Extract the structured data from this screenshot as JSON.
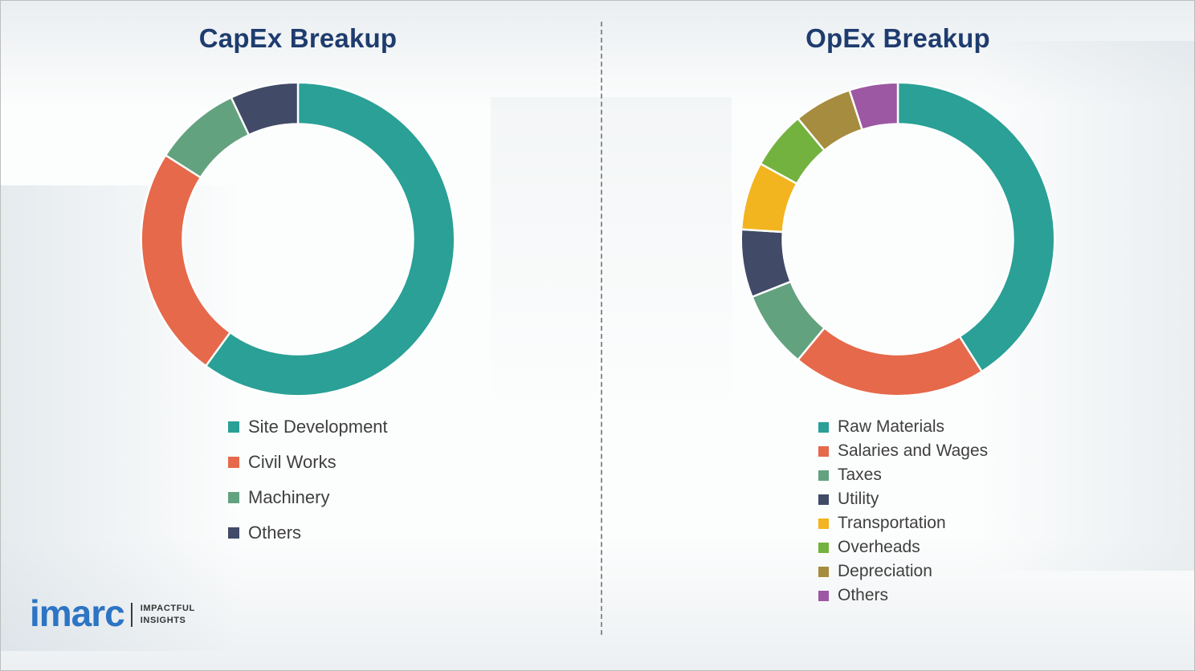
{
  "theme": {
    "title_color": "#1e3c6e",
    "legend_text_color": "#3f3f3f",
    "logo_blue": "#2d74c4",
    "divider_color": "#8d8d8d"
  },
  "chart_data": [
    {
      "type": "pie",
      "variant": "donut",
      "title": "CapEx Breakup",
      "labels": [
        "Site Development",
        "Civil Works",
        "Machinery",
        "Others"
      ],
      "values": [
        60,
        24,
        9,
        7
      ],
      "colors": [
        "#2aa096",
        "#e5694a",
        "#63a27f",
        "#414a66"
      ],
      "start_angle_deg": 0,
      "direction": "clockwise",
      "legend_position": "below-left"
    },
    {
      "type": "pie",
      "variant": "donut",
      "title": "OpEx Breakup",
      "labels": [
        "Raw Materials",
        "Salaries and Wages",
        "Taxes",
        "Utility",
        "Transportation",
        "Overheads",
        "Depreciation",
        "Others"
      ],
      "values": [
        41,
        20,
        8,
        7,
        7,
        6,
        6,
        5
      ],
      "colors": [
        "#2aa096",
        "#e5694a",
        "#63a27f",
        "#414a66",
        "#f2b41f",
        "#74b23f",
        "#a68c3f",
        "#9c58a3"
      ],
      "start_angle_deg": 0,
      "direction": "clockwise",
      "legend_position": "below-left"
    }
  ],
  "logo": {
    "brand": "imarc",
    "tagline_line1": "IMPACTFUL",
    "tagline_line2": "INSIGHTS"
  }
}
